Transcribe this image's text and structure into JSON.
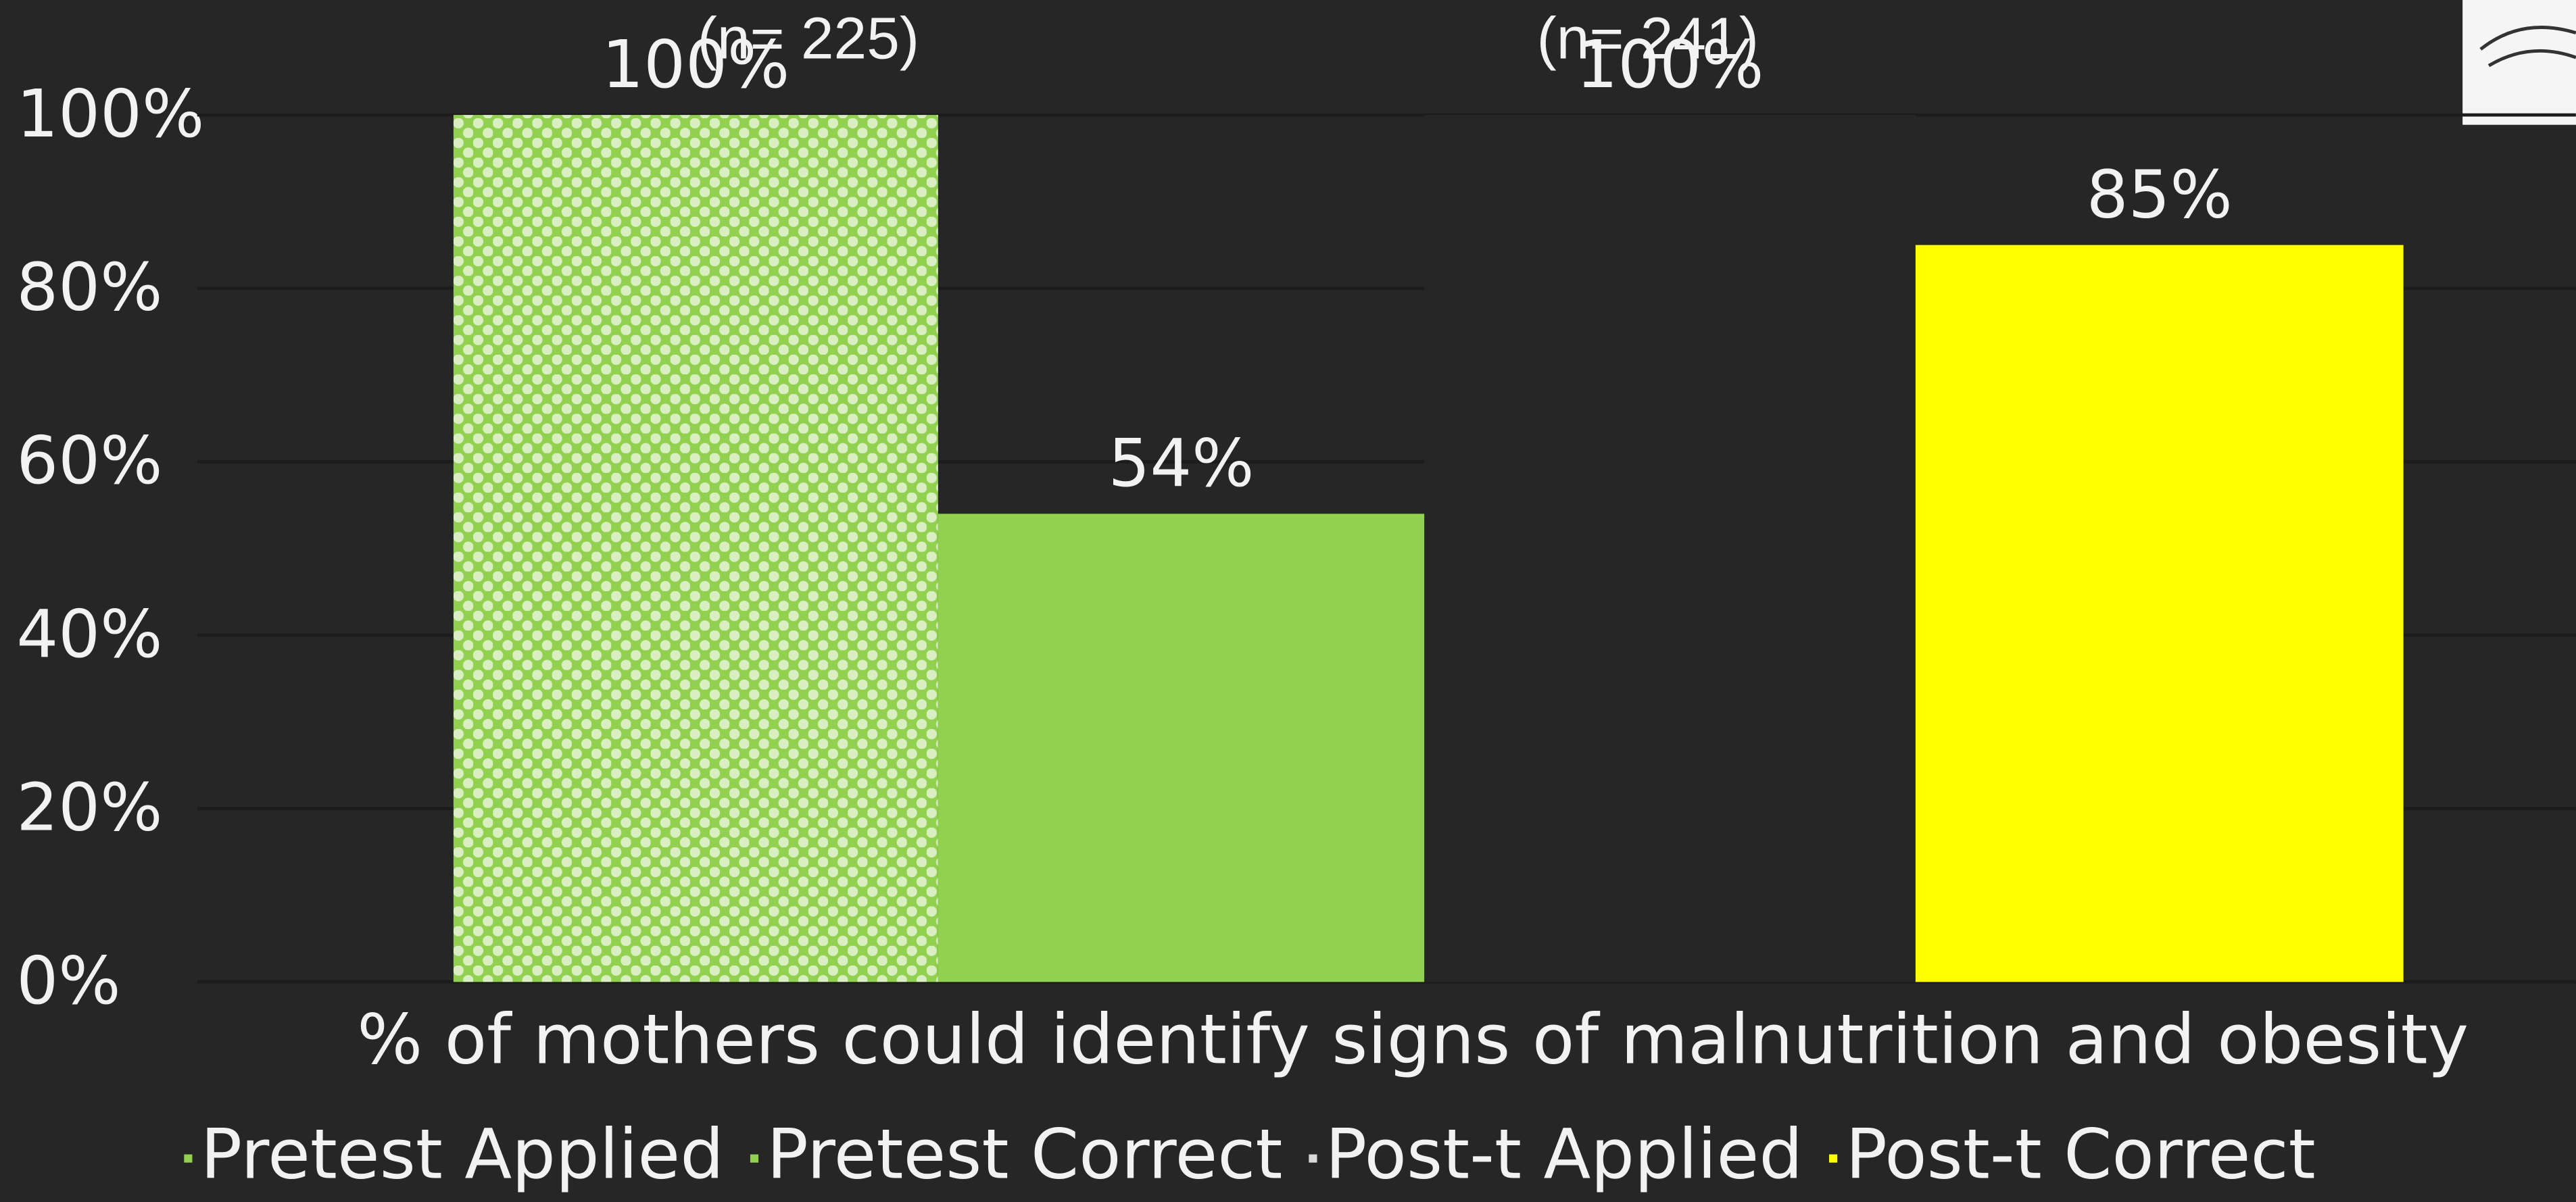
{
  "chart_data": {
    "type": "bar",
    "categories": [
      "% of mothers could identify signs of malnutrition and obesity"
    ],
    "series": [
      {
        "name": "Pretest Applied",
        "color": "#92d050",
        "pattern": "dots",
        "values": [
          100
        ],
        "value_labels": [
          "100%"
        ]
      },
      {
        "name": "Pretest Correct",
        "color": "#92d050",
        "values": [
          54
        ],
        "value_labels": [
          "54%"
        ]
      },
      {
        "name": "Post-t Applied",
        "color": "#262626",
        "values": [
          100
        ],
        "value_labels": [
          "100%"
        ]
      },
      {
        "name": "Post-t Correct",
        "color": "#ffff00",
        "values": [
          85
        ],
        "value_labels": [
          "85%"
        ]
      }
    ],
    "annotations": [
      "(n= 225)",
      "(n= 241)"
    ],
    "ylim": [
      0,
      100
    ],
    "yticks": [
      {
        "value": 0,
        "label": "0%"
      },
      {
        "value": 20,
        "label": "20%"
      },
      {
        "value": 40,
        "label": "40%"
      },
      {
        "value": 60,
        "label": "60%"
      },
      {
        "value": 80,
        "label": "80%"
      },
      {
        "value": 100,
        "label": "100%"
      }
    ],
    "grid": true,
    "legend": "bottom"
  }
}
